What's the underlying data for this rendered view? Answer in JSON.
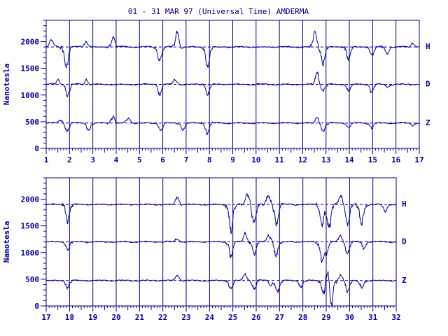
{
  "title": "01 - 31 MAR 97 (Universal Time) AMDERMA",
  "ylabel": "Nanotesla",
  "colors": {
    "axis": "#000080",
    "trace": "#0000a0",
    "text": "#0000a0"
  },
  "chart_data": [
    {
      "type": "line",
      "title": "01 - 31 MAR 97 (Universal Time) AMDERMA",
      "ylabel": "Nanotesla",
      "xlim": [
        1,
        17
      ],
      "ylim": [
        0,
        2400
      ],
      "x_ticks": [
        "1",
        "2",
        "3",
        "4",
        "5",
        "6",
        "7",
        "8",
        "9",
        "10",
        "11",
        "12",
        "13",
        "14",
        "15",
        "16",
        "17"
      ],
      "y_ticks": [
        "0",
        "500",
        "1000",
        "1500",
        "2000"
      ],
      "grid": "vertical at each day",
      "series": [
        {
          "name": "H",
          "baseline": 1900,
          "disturbances": [
            [
              1.2,
              150
            ],
            [
              1.85,
              -500
            ],
            [
              2.7,
              120
            ],
            [
              3.85,
              200
            ],
            [
              5.85,
              -300
            ],
            [
              6.6,
              300
            ],
            [
              7.9,
              -400
            ],
            [
              12.5,
              300
            ],
            [
              12.85,
              -350
            ],
            [
              13.95,
              -250
            ],
            [
              14.95,
              -200
            ],
            [
              15.6,
              -150
            ],
            [
              16.7,
              80
            ]
          ]
        },
        {
          "name": "D",
          "baseline": 1200,
          "disturbances": [
            [
              1.5,
              100
            ],
            [
              1.9,
              -250
            ],
            [
              2.7,
              100
            ],
            [
              5.85,
              -200
            ],
            [
              6.5,
              100
            ],
            [
              7.9,
              -250
            ],
            [
              12.6,
              250
            ],
            [
              12.85,
              -150
            ],
            [
              13.95,
              -150
            ],
            [
              14.95,
              -180
            ],
            [
              15.6,
              -60
            ]
          ]
        },
        {
          "name": "Z",
          "baseline": 475,
          "disturbances": [
            [
              1.6,
              80
            ],
            [
              1.9,
              -200
            ],
            [
              2.8,
              -150
            ],
            [
              3.85,
              150
            ],
            [
              4.5,
              120
            ],
            [
              5.9,
              -150
            ],
            [
              6.85,
              -120
            ],
            [
              7.9,
              -250
            ],
            [
              12.6,
              130
            ],
            [
              12.85,
              -180
            ],
            [
              13.95,
              -100
            ],
            [
              14.95,
              -120
            ],
            [
              16.7,
              -50
            ]
          ]
        }
      ]
    },
    {
      "type": "line",
      "ylabel": "Nanotesla",
      "xlim": [
        17,
        32
      ],
      "ylim": [
        0,
        2400
      ],
      "x_ticks": [
        "17",
        "18",
        "19",
        "20",
        "21",
        "22",
        "23",
        "24",
        "25",
        "26",
        "27",
        "28",
        "29",
        "30",
        "31",
        "32"
      ],
      "y_ticks": [
        "0",
        "500",
        "1000",
        "1500",
        "2000"
      ],
      "grid": "vertical at each day",
      "series": [
        {
          "name": "H",
          "baseline": 1900,
          "disturbances": [
            [
              17.9,
              -350
            ],
            [
              22.6,
              150
            ],
            [
              24.9,
              -550
            ],
            [
              25.6,
              200
            ],
            [
              25.9,
              -450
            ],
            [
              26.5,
              220
            ],
            [
              26.85,
              -400
            ],
            [
              28.8,
              -500
            ],
            [
              29.1,
              -600
            ],
            [
              29.6,
              200
            ],
            [
              29.9,
              -400
            ],
            [
              30.5,
              -450
            ],
            [
              31.5,
              -150
            ]
          ]
        },
        {
          "name": "D",
          "baseline": 1200,
          "disturbances": [
            [
              17.9,
              -150
            ],
            [
              22.6,
              80
            ],
            [
              24.9,
              -300
            ],
            [
              25.5,
              180
            ],
            [
              25.9,
              -250
            ],
            [
              26.5,
              150
            ],
            [
              26.85,
              -300
            ],
            [
              28.8,
              -350
            ],
            [
              29.0,
              -250
            ],
            [
              29.6,
              150
            ],
            [
              29.9,
              -250
            ],
            [
              30.6,
              -150
            ]
          ]
        },
        {
          "name": "Z",
          "baseline": 475,
          "disturbances": [
            [
              17.9,
              -150
            ],
            [
              22.6,
              120
            ],
            [
              24.9,
              -200
            ],
            [
              25.5,
              120
            ],
            [
              25.9,
              -200
            ],
            [
              26.6,
              -120
            ],
            [
              26.9,
              -250
            ],
            [
              27.9,
              -150
            ],
            [
              28.9,
              -400
            ],
            [
              29.0,
              350
            ],
            [
              29.2,
              -450
            ],
            [
              29.6,
              120
            ],
            [
              29.9,
              -250
            ],
            [
              30.5,
              -150
            ]
          ]
        }
      ]
    }
  ]
}
